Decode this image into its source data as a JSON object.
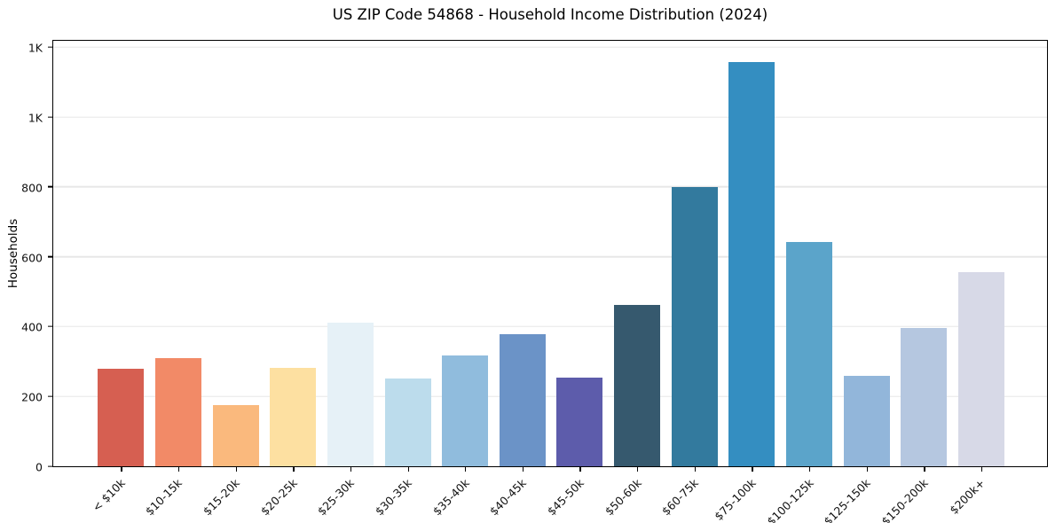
{
  "chart_data": {
    "type": "bar",
    "title": "US ZIP Code 54868 - Household Income Distribution (2024)",
    "xlabel": "",
    "ylabel": "Households",
    "categories": [
      "< $10k",
      "$10-15k",
      "$15-20k",
      "$20-25k",
      "$25-30k",
      "$30-35k",
      "$35-40k",
      "$40-45k",
      "$45-50k",
      "$50-60k",
      "$60-75k",
      "$75-100k",
      "$100-125k",
      "$125-150k",
      "$150-200k",
      "$200k+"
    ],
    "values": [
      278,
      309,
      175,
      281,
      410,
      251,
      318,
      379,
      253,
      462,
      800,
      1158,
      641,
      258,
      395,
      556
    ],
    "bar_colors": [
      "#d65f51",
      "#f28a67",
      "#fab97d",
      "#fde0a1",
      "#e6f1f7",
      "#bcdcec",
      "#90bcdd",
      "#6b93c7",
      "#5d5cab",
      "#36596e",
      "#337a9e",
      "#348ec1",
      "#5ba4ca",
      "#92b6da",
      "#b5c7e0",
      "#d7d9e7"
    ],
    "ylim": [
      0,
      1218
    ],
    "yticks": [
      {
        "value": 0,
        "label": "0"
      },
      {
        "value": 200,
        "label": "200"
      },
      {
        "value": 400,
        "label": "400"
      },
      {
        "value": 600,
        "label": "600"
      },
      {
        "value": 800,
        "label": "800"
      },
      {
        "value": 1000,
        "label": "1K"
      },
      {
        "value": 1200,
        "label": "1K"
      }
    ],
    "legend": "none",
    "grid": "horizontal",
    "grid_color": "#e7e7e7",
    "frame_color": "#000000",
    "background": "#ffffff"
  }
}
